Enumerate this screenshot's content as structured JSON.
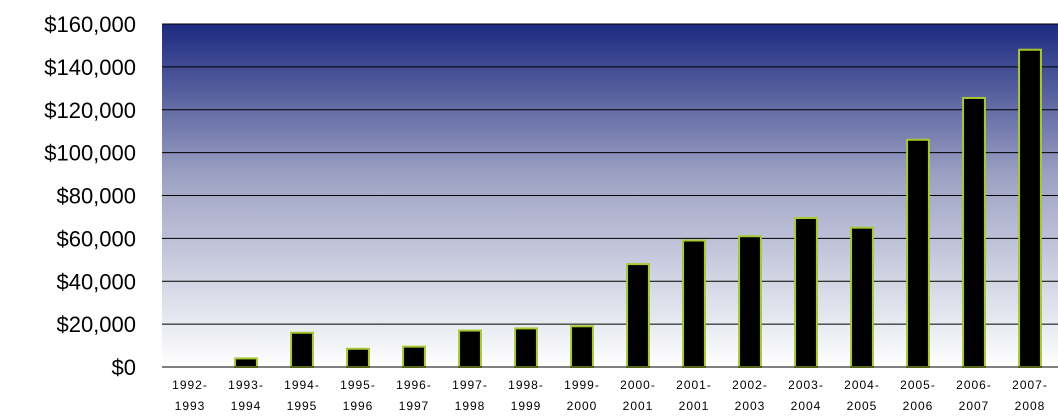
{
  "chart_data": {
    "type": "bar",
    "title": "",
    "xlabel": "",
    "ylabel": "",
    "ylim": [
      0,
      160000
    ],
    "yticks": [
      0,
      20000,
      40000,
      60000,
      80000,
      100000,
      120000,
      140000,
      160000
    ],
    "ytick_labels": [
      "$0",
      "$20,000",
      "$40,000",
      "$60,000",
      "$80,000",
      "$100,000",
      "$120,000",
      "$140,000",
      "$160,000"
    ],
    "grid": true,
    "legend": "none",
    "categories": [
      {
        "line1": "1992-",
        "line2": "1993"
      },
      {
        "line1": "1993-",
        "line2": "1994"
      },
      {
        "line1": "1994-",
        "line2": "1995"
      },
      {
        "line1": "1995-",
        "line2": "1996"
      },
      {
        "line1": "1996-",
        "line2": "1997"
      },
      {
        "line1": "1997-",
        "line2": "1998"
      },
      {
        "line1": "1998-",
        "line2": "1999"
      },
      {
        "line1": "1999-",
        "line2": "2000"
      },
      {
        "line1": "2000-",
        "line2": "2001"
      },
      {
        "line1": "2001-",
        "line2": "2001"
      },
      {
        "line1": "2002-",
        "line2": "2003"
      },
      {
        "line1": "2003-",
        "line2": "2004"
      },
      {
        "line1": "2004-",
        "line2": "2005"
      },
      {
        "line1": "2005-",
        "line2": "2006"
      },
      {
        "line1": "2006-",
        "line2": "2007"
      },
      {
        "line1": "2007-",
        "line2": "2008"
      }
    ],
    "values": [
      0,
      4000,
      16000,
      8500,
      9500,
      17000,
      18000,
      19000,
      48000,
      59000,
      61000,
      69500,
      65000,
      106000,
      125500,
      148000
    ],
    "colors": {
      "bar_fill": "#000000",
      "bar_stroke": "#a8c832",
      "plot_top": "#1c2a80",
      "plot_mid": "#9ea3c4",
      "plot_bottom": "#ffffff",
      "grid": "#000000"
    }
  }
}
